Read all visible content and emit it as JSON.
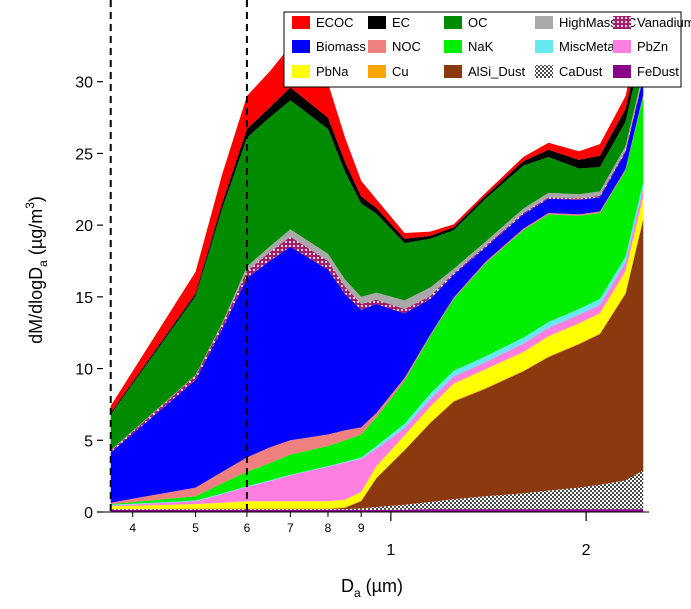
{
  "chart_data": {
    "type": "area",
    "stacked": true,
    "x_scale": "log",
    "xlabel": "D",
    "xlabel_sub": "a",
    "xlabel_unit": " (µm)",
    "ylabel": "dM/dlogD",
    "ylabel_sub": "a",
    "ylabel_unit": " (µg/m",
    "ylabel_sup": "3",
    "ylabel_close": ")",
    "xlim": [
      0.36,
      2.5
    ],
    "ylim": [
      0,
      35
    ],
    "y_ticks": [
      0,
      5,
      10,
      15,
      20,
      25,
      30
    ],
    "x_major_ticks": [
      {
        "value": 1,
        "label": "1"
      },
      {
        "value": 2,
        "label": "2"
      }
    ],
    "x_minor_ticks": [
      {
        "value": 0.4,
        "label": "4"
      },
      {
        "value": 0.5,
        "label": "5"
      },
      {
        "value": 0.6,
        "label": "6"
      },
      {
        "value": 0.7,
        "label": "7"
      },
      {
        "value": 0.8,
        "label": "8"
      },
      {
        "value": 0.9,
        "label": "9"
      }
    ],
    "dashed_lines_x": [
      0.37,
      0.6
    ],
    "legend_position": "top-right",
    "x": [
      0.37,
      0.5,
      0.55,
      0.6,
      0.65,
      0.7,
      0.8,
      0.85,
      0.9,
      0.95,
      1.05,
      1.15,
      1.25,
      1.4,
      1.6,
      1.75,
      1.95,
      2.1,
      2.3,
      2.45
    ],
    "series": [
      {
        "name": "FeDust",
        "color": "#8b008b",
        "pattern": "",
        "values": [
          0.15,
          0.15,
          0.15,
          0.15,
          0.15,
          0.15,
          0.15,
          0.15,
          0.15,
          0.15,
          0.15,
          0.2,
          0.2,
          0.2,
          0.2,
          0.2,
          0.2,
          0.2,
          0.2,
          0.2
        ]
      },
      {
        "name": "CaDust",
        "color": "#6b6b6b",
        "pattern": "hatch",
        "values": [
          0.05,
          0.05,
          0.05,
          0.05,
          0.05,
          0.05,
          0.05,
          0.05,
          0.1,
          0.2,
          0.35,
          0.5,
          0.7,
          0.9,
          1.1,
          1.3,
          1.5,
          1.7,
          2.0,
          2.7
        ]
      },
      {
        "name": "AlSi_Dust",
        "color": "#8b3a0f",
        "pattern": "",
        "values": [
          0,
          0,
          0,
          0,
          0,
          0,
          0,
          0.1,
          0.5,
          2.0,
          3.8,
          5.5,
          6.8,
          7.5,
          8.5,
          9.3,
          10.0,
          10.5,
          13.0,
          17.5
        ]
      },
      {
        "name": "Cu",
        "color": "#ffa500",
        "pattern": "",
        "values": [
          0,
          0.05,
          0.05,
          0.05,
          0.05,
          0.05,
          0.05,
          0.05,
          0.05,
          0.05,
          0.05,
          0.05,
          0.05,
          0.05,
          0.05,
          0.05,
          0.05,
          0.05,
          0.1,
          0.1
        ]
      },
      {
        "name": "PbNa",
        "color": "#ffff00",
        "pattern": "",
        "values": [
          0.2,
          0.3,
          0.4,
          0.5,
          0.5,
          0.5,
          0.5,
          0.5,
          0.6,
          0.8,
          1.0,
          1.1,
          1.2,
          1.3,
          1.3,
          1.4,
          1.4,
          1.4,
          1.5,
          1.5
        ]
      },
      {
        "name": "PbZn",
        "color": "#ff7fe0",
        "pattern": "",
        "values": [
          0.05,
          0.2,
          0.6,
          1.0,
          1.4,
          1.8,
          2.4,
          2.6,
          2.3,
          1.2,
          0.5,
          0.5,
          0.5,
          0.5,
          0.6,
          0.6,
          0.6,
          0.6,
          0.6,
          0.6
        ]
      },
      {
        "name": "MiscMetals",
        "color": "#66e8f0",
        "pattern": "",
        "values": [
          0.05,
          0.05,
          0.05,
          0.05,
          0.05,
          0.05,
          0.05,
          0.05,
          0.1,
          0.2,
          0.3,
          0.4,
          0.4,
          0.4,
          0.4,
          0.4,
          0.4,
          0.4,
          0.4,
          0.4
        ]
      },
      {
        "name": "NaK",
        "color": "#00ee00",
        "pattern": "",
        "values": [
          0.05,
          0.3,
          0.7,
          1.0,
          1.2,
          1.4,
          1.4,
          1.5,
          1.6,
          2.0,
          3.0,
          4.0,
          5.0,
          6.5,
          7.5,
          7.5,
          6.5,
          6.0,
          6.0,
          6.0
        ]
      },
      {
        "name": "NOC",
        "color": "#f08080",
        "pattern": "",
        "values": [
          0.1,
          0.6,
          0.8,
          1.0,
          1.1,
          1.0,
          0.8,
          0.7,
          0.5,
          0.3,
          0.2,
          0.1,
          0.1,
          0.1,
          0.1,
          0.1,
          0.1,
          0.1,
          0.1,
          0.1
        ]
      },
      {
        "name": "Biomass",
        "color": "#0000ff",
        "pattern": "",
        "values": [
          3.5,
          7.5,
          10.0,
          12.5,
          13.0,
          13.5,
          11.5,
          9.5,
          8.2,
          7.6,
          4.5,
          2.5,
          1.6,
          1.0,
          1.0,
          1.0,
          1.0,
          1.0,
          1.2,
          1.2
        ]
      },
      {
        "name": "Vanadium",
        "color": "#a0206a",
        "pattern": "dots",
        "values": [
          0.1,
          0.3,
          0.3,
          0.5,
          0.6,
          0.7,
          0.6,
          0.5,
          0.4,
          0.3,
          0.3,
          0.2,
          0.1,
          0.1,
          0.1,
          0.1,
          0.1,
          0.1,
          0.1,
          0.1
        ]
      },
      {
        "name": "HighMassOC",
        "color": "#a9a9a9",
        "pattern": "",
        "values": [
          0.05,
          0.05,
          0.1,
          0.3,
          0.4,
          0.5,
          0.5,
          0.5,
          0.5,
          0.5,
          0.6,
          0.6,
          0.3,
          0.3,
          0.3,
          0.3,
          0.3,
          0.3,
          0.3,
          0.3
        ]
      },
      {
        "name": "OC",
        "color": "#008b00",
        "pattern": "",
        "values": [
          2.5,
          5.5,
          8.0,
          9.0,
          9.0,
          9.0,
          8.7,
          7.5,
          6.5,
          5.5,
          4.0,
          3.4,
          2.7,
          3.0,
          3.0,
          2.5,
          1.8,
          1.7,
          1.7,
          2.0
        ]
      },
      {
        "name": "EC",
        "color": "#000000",
        "pattern": "",
        "values": [
          0.1,
          0.2,
          0.4,
          0.6,
          0.7,
          0.9,
          0.8,
          0.7,
          0.5,
          0.4,
          0.3,
          0.2,
          0.2,
          0.2,
          0.3,
          0.5,
          0.6,
          0.8,
          0.9,
          0.9
        ]
      },
      {
        "name": "ECOC",
        "color": "#ff0000",
        "pattern": "",
        "values": [
          0.5,
          1.5,
          2.0,
          2.3,
          2.5,
          2.9,
          2.4,
          1.7,
          1.1,
          0.6,
          0.4,
          0.3,
          0.2,
          0.2,
          0.3,
          0.5,
          0.6,
          0.8,
          0.9,
          0.9
        ]
      }
    ],
    "legend_order": [
      "ECOC",
      "EC",
      "OC",
      "HighMassOC",
      "Vanadium",
      "Biomass",
      "NOC",
      "NaK",
      "MiscMetals",
      "PbZn",
      "PbNa",
      "Cu",
      "AlSi_Dust",
      "CaDust",
      "FeDust"
    ]
  }
}
